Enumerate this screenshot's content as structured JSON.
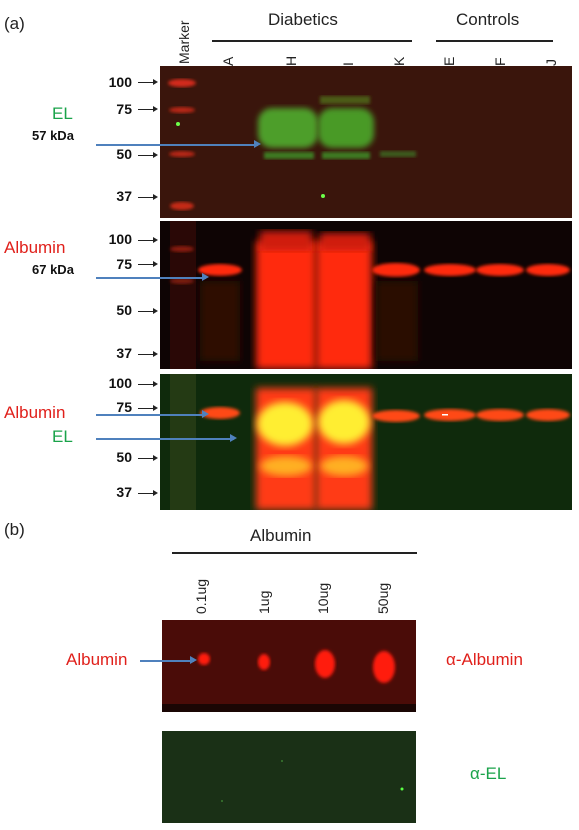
{
  "panel_a": {
    "label": "(a)",
    "marker_label": "Marker",
    "groups": [
      {
        "label": "Diabetics",
        "lanes": [
          "A",
          "H",
          "I",
          "K"
        ]
      },
      {
        "label": "Controls",
        "lanes": [
          "E",
          "F",
          "J"
        ]
      }
    ],
    "blots": [
      {
        "name": "EL",
        "kda": "57 kDa",
        "label_color": "#1aa34a",
        "mw_markers": [
          "100",
          "75",
          "50",
          "37"
        ]
      },
      {
        "name": "Albumin",
        "kda": "67 kDa",
        "label_color": "#e0201b",
        "mw_markers": [
          "100",
          "75",
          "50",
          "37"
        ]
      },
      {
        "name_top": "Albumin",
        "name_bottom": "EL",
        "mw_markers": [
          "100",
          "75",
          "50",
          "37"
        ]
      }
    ]
  },
  "panel_b": {
    "label": "(b)",
    "title": "Albumin",
    "amounts": [
      "0.1ug",
      "1ug",
      "10ug",
      "50ug"
    ],
    "row_label": "Albumin",
    "antibodies": [
      {
        "label": "α-Albumin",
        "color": "#e0201b"
      },
      {
        "label": "α-EL",
        "color": "#1aa34a"
      }
    ]
  },
  "colors": {
    "red": "#e0201b",
    "green": "#1aa34a",
    "arrow": "#4f81bd"
  }
}
